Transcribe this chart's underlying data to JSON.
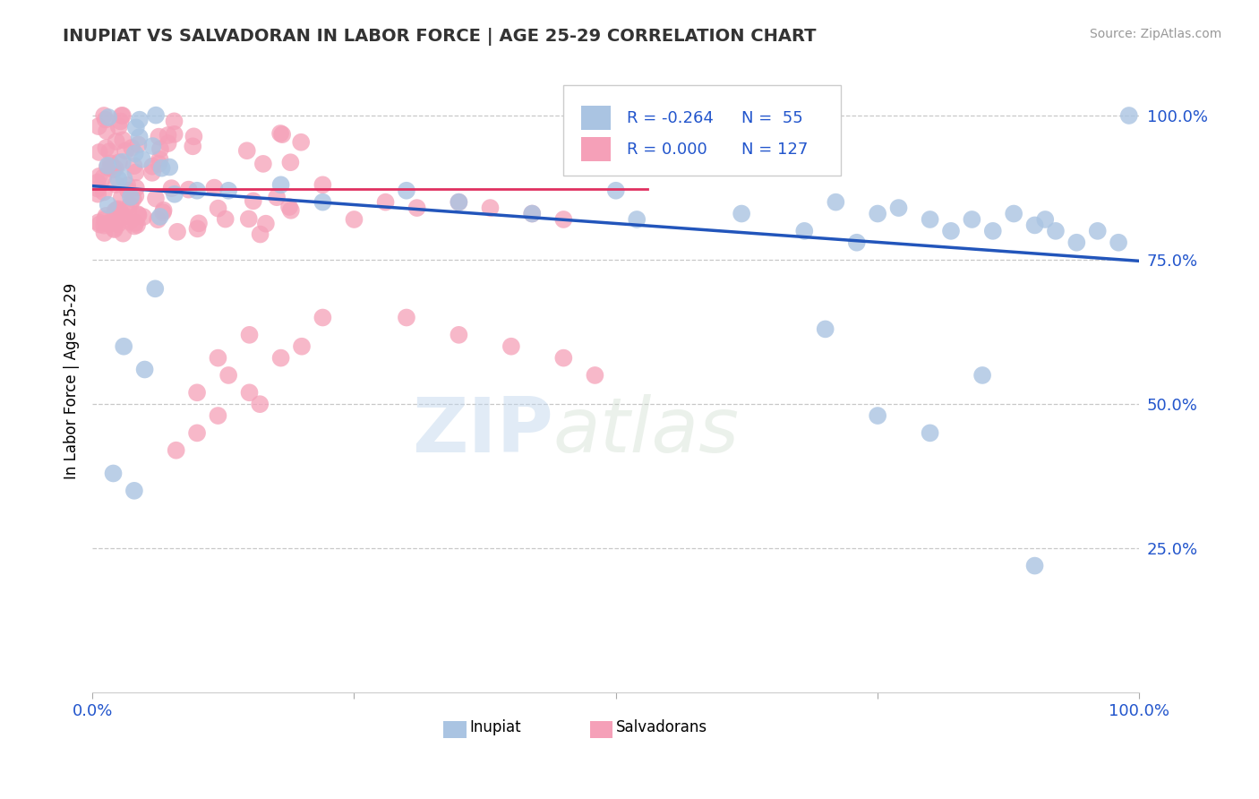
{
  "title": "INUPIAT VS SALVADORAN IN LABOR FORCE | AGE 25-29 CORRELATION CHART",
  "source": "Source: ZipAtlas.com",
  "ylabel": "In Labor Force | Age 25-29",
  "xlim": [
    0.0,
    1.0
  ],
  "ylim": [
    0.0,
    1.08
  ],
  "inupiat_R": -0.264,
  "inupiat_N": 55,
  "salvadoran_R": 0.0,
  "salvadoran_N": 127,
  "inupiat_color": "#aac4e2",
  "salvadoran_color": "#f5a0b8",
  "inupiat_line_color": "#2255bb",
  "salvadoran_line_color": "#e03060",
  "grid_color": "#bbbbbb",
  "axis_label_color": "#2255cc",
  "title_color": "#333333",
  "watermark_zip": "ZIP",
  "watermark_atlas": "atlas",
  "inupiat_line_x0": 0.0,
  "inupiat_line_x1": 1.0,
  "inupiat_line_y0": 0.878,
  "inupiat_line_y1": 0.748,
  "salvadoran_line_x0": 0.0,
  "salvadoran_line_x1": 0.53,
  "salvadoran_line_y0": 0.872,
  "salvadoran_line_y1": 0.872,
  "legend_R1": "R = -0.264",
  "legend_N1": "N =  55",
  "legend_R2": "R = 0.000",
  "legend_N2": "N = 127"
}
